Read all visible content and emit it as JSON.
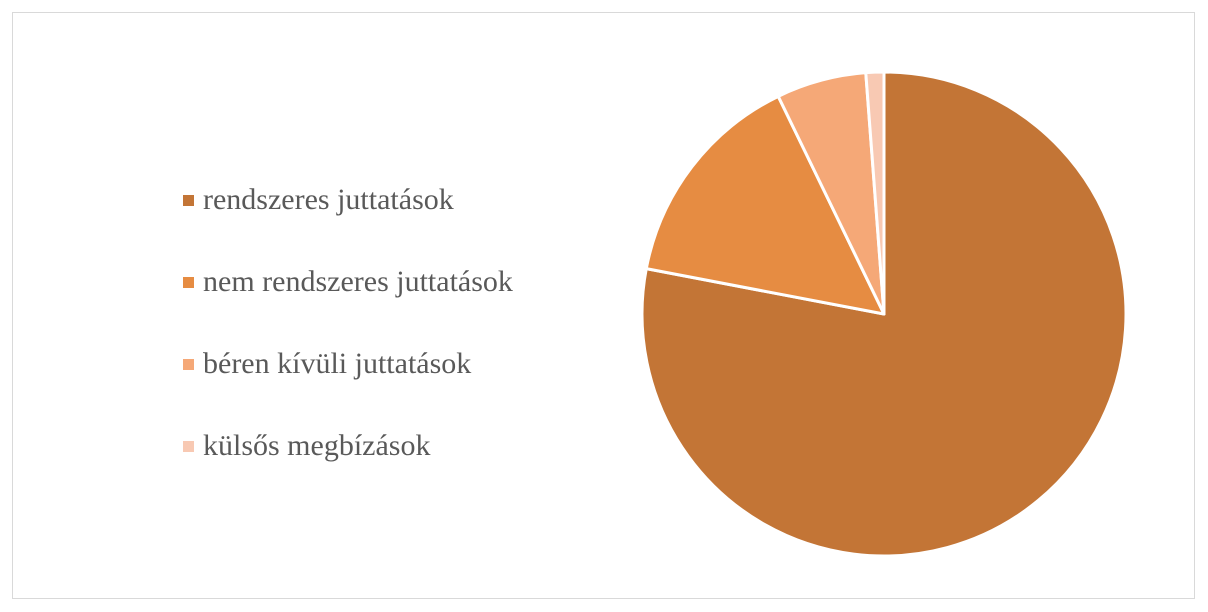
{
  "chart_data": {
    "type": "pie",
    "title": "",
    "legend_position": "left",
    "start_angle_deg": 0,
    "direction": "clockwise",
    "slices": [
      {
        "label": "rendszeres juttatások",
        "value": 0.78,
        "color": "#c37536"
      },
      {
        "label": "nem rendszeres juttatások",
        "value": 0.148,
        "color": "#e68c42"
      },
      {
        "label": "béren kívüli juttatások",
        "value": 0.06,
        "color": "#f5a877"
      },
      {
        "label": "külsős megbízások",
        "value": 0.012,
        "color": "#f8c9b3"
      }
    ]
  }
}
